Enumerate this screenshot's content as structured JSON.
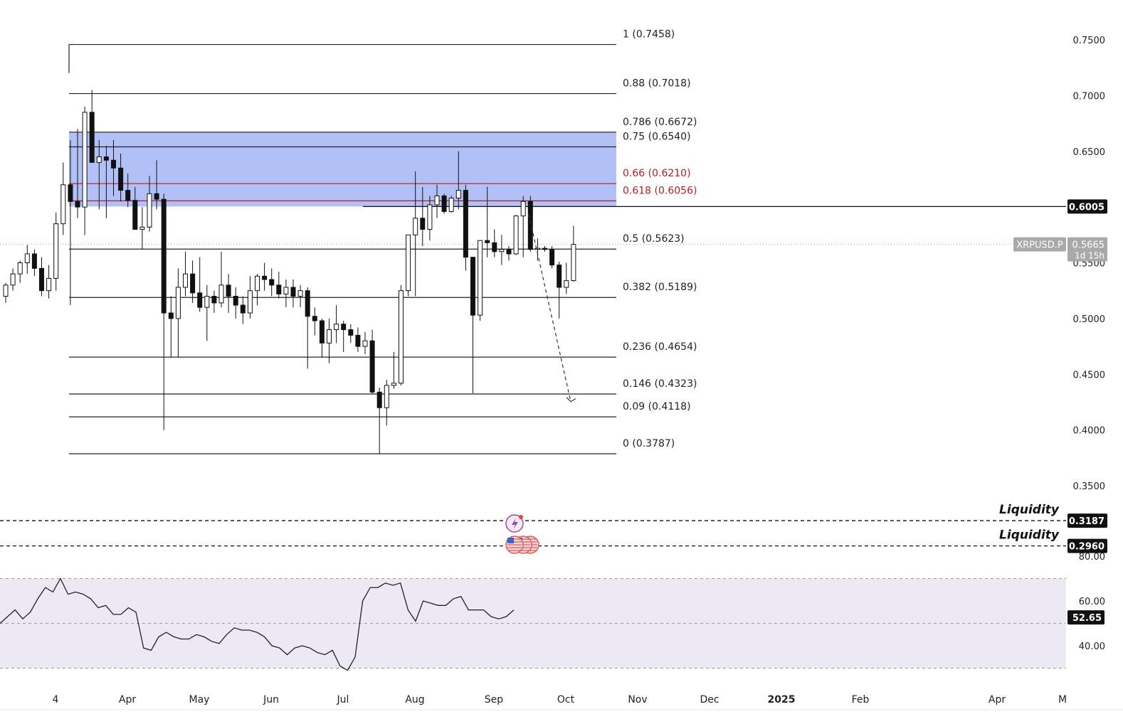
{
  "chart_data": [
    {
      "type": "candlestick",
      "symbol_tag": "XRPUSD.P",
      "timer_tag": "1d 15h",
      "price_axis": {
        "ylim": [
          0.32,
          0.775
        ],
        "tick_labels": [
          "0.7500",
          "0.7000",
          "0.6500",
          "0.5500",
          "0.5000",
          "0.4500",
          "0.4000",
          "0.3500"
        ]
      },
      "date_axis": [
        "4",
        "Apr",
        "May",
        "Jun",
        "Jul",
        "Aug",
        "Sep",
        "Oct",
        "Nov",
        "Dec",
        "2025",
        "Feb",
        "Apr",
        "M"
      ],
      "fib_levels": [
        {
          "label": "1 (0.7458)",
          "price": 0.7458,
          "color": "#222222"
        },
        {
          "label": "0.88 (0.7018)",
          "price": 0.7018,
          "color": "#222222"
        },
        {
          "label": "0.786 (0.6672)",
          "price": 0.6672,
          "color": "#222222"
        },
        {
          "label": "0.75 (0.6540)",
          "price": 0.654,
          "color": "#222222"
        },
        {
          "label": "0.66 (0.6210)",
          "price": 0.621,
          "color": "#b71c1c"
        },
        {
          "label": "0.618 (0.6056)",
          "price": 0.6056,
          "color": "#b71c1c"
        },
        {
          "label": "0.5 (0.5623)",
          "price": 0.5623,
          "color": "#222222"
        },
        {
          "label": "0.382 (0.5189)",
          "price": 0.5189,
          "color": "#222222"
        },
        {
          "label": "0.236 (0.4654)",
          "price": 0.4654,
          "color": "#222222"
        },
        {
          "label": "0.146 (0.4323)",
          "price": 0.4323,
          "color": "#222222"
        },
        {
          "label": "0.09 (0.4118)",
          "price": 0.4118,
          "color": "#222222"
        },
        {
          "label": "0 (0.3787)",
          "price": 0.3787,
          "color": "#222222"
        }
      ],
      "zone": {
        "price_top": 0.6672,
        "price_bottom": 0.6005,
        "color": "#a9b9f5"
      },
      "resistance_line": {
        "price": 0.6005,
        "label": "0.6005"
      },
      "current_price": {
        "price": 0.5665,
        "label": "0.5665"
      },
      "liquidity_levels": [
        {
          "text": "Liquidity",
          "price": 0.3187,
          "label": "0.3187"
        },
        {
          "text": "Liquidity",
          "price": 0.296,
          "label": "0.2960"
        }
      ],
      "projection": {
        "from_price": 0.5935,
        "to_price": 0.4255
      },
      "candles": [
        {
          "o": 0.52,
          "h": 0.532,
          "l": 0.514,
          "c": 0.53
        },
        {
          "o": 0.53,
          "h": 0.545,
          "l": 0.525,
          "c": 0.54
        },
        {
          "o": 0.54,
          "h": 0.552,
          "l": 0.532,
          "c": 0.55
        },
        {
          "o": 0.55,
          "h": 0.566,
          "l": 0.54,
          "c": 0.558
        },
        {
          "o": 0.558,
          "h": 0.562,
          "l": 0.538,
          "c": 0.545
        },
        {
          "o": 0.545,
          "h": 0.555,
          "l": 0.52,
          "c": 0.525
        },
        {
          "o": 0.525,
          "h": 0.548,
          "l": 0.518,
          "c": 0.536
        },
        {
          "o": 0.536,
          "h": 0.595,
          "l": 0.525,
          "c": 0.585
        },
        {
          "o": 0.585,
          "h": 0.64,
          "l": 0.575,
          "c": 0.62
        },
        {
          "o": 0.62,
          "h": 0.66,
          "l": 0.512,
          "c": 0.605
        },
        {
          "o": 0.605,
          "h": 0.67,
          "l": 0.59,
          "c": 0.6
        },
        {
          "o": 0.6,
          "h": 0.69,
          "l": 0.575,
          "c": 0.685
        },
        {
          "o": 0.685,
          "h": 0.705,
          "l": 0.64,
          "c": 0.64
        },
        {
          "o": 0.64,
          "h": 0.66,
          "l": 0.598,
          "c": 0.645
        },
        {
          "o": 0.645,
          "h": 0.655,
          "l": 0.59,
          "c": 0.642
        },
        {
          "o": 0.642,
          "h": 0.66,
          "l": 0.61,
          "c": 0.635
        },
        {
          "o": 0.635,
          "h": 0.648,
          "l": 0.605,
          "c": 0.615
        },
        {
          "o": 0.615,
          "h": 0.63,
          "l": 0.6,
          "c": 0.606
        },
        {
          "o": 0.606,
          "h": 0.618,
          "l": 0.58,
          "c": 0.58
        },
        {
          "o": 0.58,
          "h": 0.6,
          "l": 0.562,
          "c": 0.582
        },
        {
          "o": 0.582,
          "h": 0.628,
          "l": 0.578,
          "c": 0.612
        },
        {
          "o": 0.612,
          "h": 0.642,
          "l": 0.598,
          "c": 0.607
        },
        {
          "o": 0.607,
          "h": 0.612,
          "l": 0.4,
          "c": 0.505
        },
        {
          "o": 0.505,
          "h": 0.52,
          "l": 0.465,
          "c": 0.5
        },
        {
          "o": 0.5,
          "h": 0.545,
          "l": 0.465,
          "c": 0.528
        },
        {
          "o": 0.528,
          "h": 0.56,
          "l": 0.52,
          "c": 0.54
        },
        {
          "o": 0.54,
          "h": 0.552,
          "l": 0.514,
          "c": 0.523
        },
        {
          "o": 0.523,
          "h": 0.555,
          "l": 0.506,
          "c": 0.51
        },
        {
          "o": 0.51,
          "h": 0.53,
          "l": 0.48,
          "c": 0.52
        },
        {
          "o": 0.52,
          "h": 0.525,
          "l": 0.505,
          "c": 0.514
        },
        {
          "o": 0.514,
          "h": 0.56,
          "l": 0.51,
          "c": 0.53
        },
        {
          "o": 0.53,
          "h": 0.54,
          "l": 0.505,
          "c": 0.52
        },
        {
          "o": 0.52,
          "h": 0.528,
          "l": 0.5,
          "c": 0.512
        },
        {
          "o": 0.512,
          "h": 0.52,
          "l": 0.495,
          "c": 0.505
        },
        {
          "o": 0.505,
          "h": 0.538,
          "l": 0.5,
          "c": 0.525
        },
        {
          "o": 0.525,
          "h": 0.54,
          "l": 0.512,
          "c": 0.538
        },
        {
          "o": 0.538,
          "h": 0.55,
          "l": 0.525,
          "c": 0.535
        },
        {
          "o": 0.535,
          "h": 0.545,
          "l": 0.52,
          "c": 0.53
        },
        {
          "o": 0.53,
          "h": 0.542,
          "l": 0.518,
          "c": 0.522
        },
        {
          "o": 0.522,
          "h": 0.535,
          "l": 0.51,
          "c": 0.528
        },
        {
          "o": 0.528,
          "h": 0.535,
          "l": 0.51,
          "c": 0.52
        },
        {
          "o": 0.52,
          "h": 0.53,
          "l": 0.51,
          "c": 0.525
        },
        {
          "o": 0.525,
          "h": 0.528,
          "l": 0.455,
          "c": 0.502
        },
        {
          "o": 0.502,
          "h": 0.51,
          "l": 0.485,
          "c": 0.498
        },
        {
          "o": 0.498,
          "h": 0.5,
          "l": 0.465,
          "c": 0.478
        },
        {
          "o": 0.478,
          "h": 0.5,
          "l": 0.46,
          "c": 0.49
        },
        {
          "o": 0.49,
          "h": 0.512,
          "l": 0.478,
          "c": 0.495
        },
        {
          "o": 0.495,
          "h": 0.498,
          "l": 0.47,
          "c": 0.49
        },
        {
          "o": 0.49,
          "h": 0.495,
          "l": 0.478,
          "c": 0.485
        },
        {
          "o": 0.485,
          "h": 0.492,
          "l": 0.47,
          "c": 0.475
        },
        {
          "o": 0.475,
          "h": 0.488,
          "l": 0.468,
          "c": 0.48
        },
        {
          "o": 0.48,
          "h": 0.49,
          "l": 0.432,
          "c": 0.434
        },
        {
          "o": 0.434,
          "h": 0.438,
          "l": 0.379,
          "c": 0.42
        },
        {
          "o": 0.42,
          "h": 0.445,
          "l": 0.404,
          "c": 0.44
        },
        {
          "o": 0.44,
          "h": 0.47,
          "l": 0.437,
          "c": 0.442
        },
        {
          "o": 0.442,
          "h": 0.53,
          "l": 0.44,
          "c": 0.525
        },
        {
          "o": 0.525,
          "h": 0.575,
          "l": 0.52,
          "c": 0.575
        },
        {
          "o": 0.575,
          "h": 0.632,
          "l": 0.52,
          "c": 0.59
        },
        {
          "o": 0.59,
          "h": 0.618,
          "l": 0.565,
          "c": 0.58
        },
        {
          "o": 0.58,
          "h": 0.61,
          "l": 0.57,
          "c": 0.602
        },
        {
          "o": 0.602,
          "h": 0.62,
          "l": 0.59,
          "c": 0.61
        },
        {
          "o": 0.61,
          "h": 0.612,
          "l": 0.594,
          "c": 0.596
        },
        {
          "o": 0.596,
          "h": 0.61,
          "l": 0.595,
          "c": 0.608
        },
        {
          "o": 0.608,
          "h": 0.65,
          "l": 0.598,
          "c": 0.615
        },
        {
          "o": 0.615,
          "h": 0.62,
          "l": 0.543,
          "c": 0.555
        },
        {
          "o": 0.555,
          "h": 0.555,
          "l": 0.433,
          "c": 0.503
        },
        {
          "o": 0.503,
          "h": 0.57,
          "l": 0.498,
          "c": 0.57
        },
        {
          "o": 0.57,
          "h": 0.618,
          "l": 0.555,
          "c": 0.568
        },
        {
          "o": 0.568,
          "h": 0.58,
          "l": 0.555,
          "c": 0.56
        },
        {
          "o": 0.56,
          "h": 0.575,
          "l": 0.548,
          "c": 0.562
        },
        {
          "o": 0.562,
          "h": 0.565,
          "l": 0.552,
          "c": 0.558
        },
        {
          "o": 0.558,
          "h": 0.593,
          "l": 0.557,
          "c": 0.592
        },
        {
          "o": 0.592,
          "h": 0.61,
          "l": 0.555,
          "c": 0.605
        },
        {
          "o": 0.605,
          "h": 0.61,
          "l": 0.56,
          "c": 0.562
        },
        {
          "o": 0.562,
          "h": 0.572,
          "l": 0.552,
          "c": 0.563
        },
        {
          "o": 0.563,
          "h": 0.565,
          "l": 0.56,
          "c": 0.562
        },
        {
          "o": 0.562,
          "h": 0.565,
          "l": 0.545,
          "c": 0.548
        },
        {
          "o": 0.548,
          "h": 0.551,
          "l": 0.5,
          "c": 0.528
        },
        {
          "o": 0.528,
          "h": 0.55,
          "l": 0.522,
          "c": 0.534
        },
        {
          "o": 0.534,
          "h": 0.583,
          "l": 0.533,
          "c": 0.5665
        }
      ],
      "candle_start_index": 0,
      "date_tick_index": {
        "4": 8,
        "Apr": 18,
        "May": 28,
        "Jun": 38,
        "Jul": 48,
        "Aug": 58,
        "Sep": 69,
        "Oct": 79,
        "Nov": 89,
        "Dec": 99,
        "2025": 109,
        "Feb": 119,
        "Apr2": 139,
        "M": 148
      }
    },
    {
      "type": "line",
      "name": "RSI",
      "ylim": [
        30,
        85
      ],
      "tick_labels": [
        "60.00",
        "40.00"
      ],
      "partial_tick_label": "80.00",
      "band": {
        "upper": 70,
        "lower": 30,
        "middle": 50
      },
      "current_value": {
        "value": 52.65,
        "label": "52.65"
      },
      "values": [
        50,
        53,
        56,
        52,
        55,
        61,
        66,
        64,
        70,
        63,
        64,
        63,
        61,
        57,
        58,
        54,
        54,
        57,
        55,
        39,
        38,
        44,
        46,
        44,
        43,
        43,
        45,
        44,
        42,
        41,
        45,
        48,
        47,
        47,
        46,
        44,
        40,
        39,
        36,
        39,
        40,
        39,
        37,
        36,
        38,
        31,
        29,
        35,
        60,
        66,
        66,
        68,
        67,
        68,
        56,
        51,
        60,
        59,
        58,
        58,
        61,
        62,
        56,
        56,
        56,
        53,
        52,
        53,
        56
      ]
    }
  ]
}
